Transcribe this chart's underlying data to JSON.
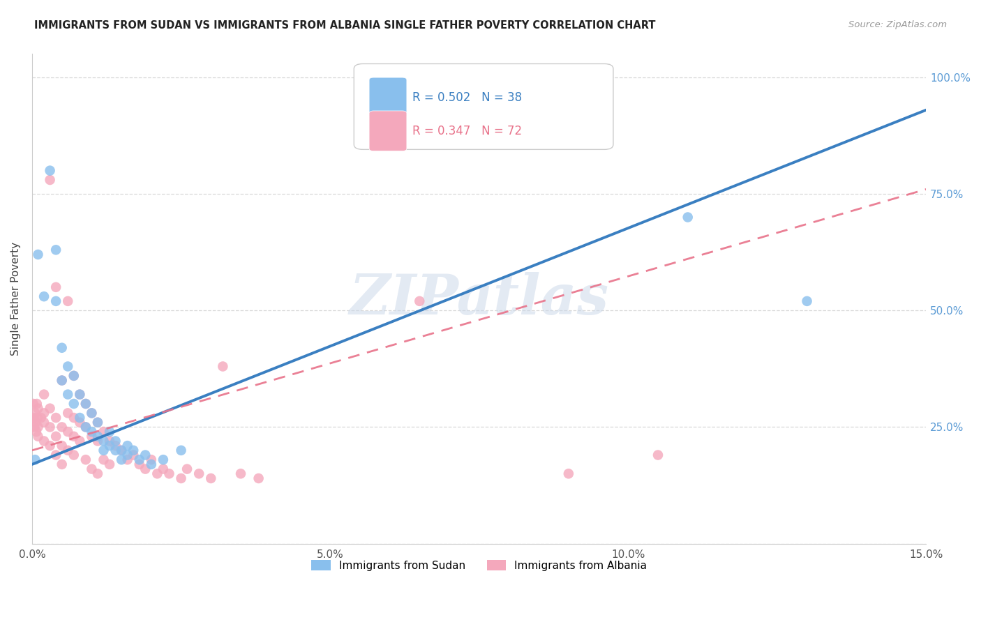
{
  "title": "IMMIGRANTS FROM SUDAN VS IMMIGRANTS FROM ALBANIA SINGLE FATHER POVERTY CORRELATION CHART",
  "source": "Source: ZipAtlas.com",
  "ylabel": "Single Father Poverty",
  "xlim": [
    0.0,
    0.15
  ],
  "ylim": [
    0.0,
    1.05
  ],
  "xtick_vals": [
    0.0,
    0.05,
    0.1,
    0.15
  ],
  "xtick_labels": [
    "0.0%",
    "5.0%",
    "10.0%",
    "15.0%"
  ],
  "ytick_vals": [
    0.0,
    0.25,
    0.5,
    0.75,
    1.0
  ],
  "ytick_labels_right": [
    "",
    "25.0%",
    "50.0%",
    "75.0%",
    "100.0%"
  ],
  "sudan_color": "#89bfed",
  "albania_color": "#f4a8bc",
  "sudan_line_color": "#3a7fc1",
  "albania_line_color": "#e8728a",
  "R_sudan": 0.502,
  "N_sudan": 38,
  "R_albania": 0.347,
  "N_albania": 72,
  "watermark": "ZIPatlas",
  "background_color": "#ffffff",
  "grid_color": "#d8d8d8",
  "title_color": "#222222",
  "right_tick_color": "#5b9bd5",
  "legend_label_sudan": "Immigrants from Sudan",
  "legend_label_albania": "Immigrants from Albania",
  "sudan_points": [
    [
      0.0005,
      0.18
    ],
    [
      0.001,
      0.62
    ],
    [
      0.002,
      0.53
    ],
    [
      0.003,
      0.8
    ],
    [
      0.004,
      0.63
    ],
    [
      0.004,
      0.52
    ],
    [
      0.005,
      0.42
    ],
    [
      0.005,
      0.35
    ],
    [
      0.006,
      0.38
    ],
    [
      0.006,
      0.32
    ],
    [
      0.007,
      0.36
    ],
    [
      0.007,
      0.3
    ],
    [
      0.008,
      0.32
    ],
    [
      0.008,
      0.27
    ],
    [
      0.009,
      0.3
    ],
    [
      0.009,
      0.25
    ],
    [
      0.01,
      0.28
    ],
    [
      0.01,
      0.24
    ],
    [
      0.011,
      0.26
    ],
    [
      0.011,
      0.23
    ],
    [
      0.012,
      0.22
    ],
    [
      0.012,
      0.2
    ],
    [
      0.013,
      0.24
    ],
    [
      0.013,
      0.21
    ],
    [
      0.014,
      0.22
    ],
    [
      0.014,
      0.2
    ],
    [
      0.015,
      0.2
    ],
    [
      0.015,
      0.18
    ],
    [
      0.016,
      0.21
    ],
    [
      0.016,
      0.19
    ],
    [
      0.017,
      0.2
    ],
    [
      0.018,
      0.18
    ],
    [
      0.019,
      0.19
    ],
    [
      0.02,
      0.17
    ],
    [
      0.022,
      0.18
    ],
    [
      0.025,
      0.2
    ],
    [
      0.11,
      0.7
    ],
    [
      0.13,
      0.52
    ]
  ],
  "albania_points": [
    [
      0.0002,
      0.3
    ],
    [
      0.0003,
      0.27
    ],
    [
      0.0004,
      0.25
    ],
    [
      0.0005,
      0.28
    ],
    [
      0.0006,
      0.26
    ],
    [
      0.0007,
      0.24
    ],
    [
      0.0008,
      0.3
    ],
    [
      0.0009,
      0.27
    ],
    [
      0.001,
      0.25
    ],
    [
      0.001,
      0.29
    ],
    [
      0.001,
      0.23
    ],
    [
      0.0015,
      0.27
    ],
    [
      0.002,
      0.32
    ],
    [
      0.002,
      0.26
    ],
    [
      0.002,
      0.22
    ],
    [
      0.002,
      0.28
    ],
    [
      0.003,
      0.29
    ],
    [
      0.003,
      0.25
    ],
    [
      0.003,
      0.21
    ],
    [
      0.003,
      0.78
    ],
    [
      0.004,
      0.27
    ],
    [
      0.004,
      0.55
    ],
    [
      0.004,
      0.23
    ],
    [
      0.004,
      0.19
    ],
    [
      0.005,
      0.35
    ],
    [
      0.005,
      0.25
    ],
    [
      0.005,
      0.21
    ],
    [
      0.005,
      0.17
    ],
    [
      0.006,
      0.52
    ],
    [
      0.006,
      0.28
    ],
    [
      0.006,
      0.24
    ],
    [
      0.006,
      0.2
    ],
    [
      0.007,
      0.36
    ],
    [
      0.007,
      0.27
    ],
    [
      0.007,
      0.23
    ],
    [
      0.007,
      0.19
    ],
    [
      0.008,
      0.32
    ],
    [
      0.008,
      0.26
    ],
    [
      0.008,
      0.22
    ],
    [
      0.009,
      0.3
    ],
    [
      0.009,
      0.25
    ],
    [
      0.009,
      0.18
    ],
    [
      0.01,
      0.28
    ],
    [
      0.01,
      0.23
    ],
    [
      0.01,
      0.16
    ],
    [
      0.011,
      0.26
    ],
    [
      0.011,
      0.22
    ],
    [
      0.011,
      0.15
    ],
    [
      0.012,
      0.24
    ],
    [
      0.012,
      0.18
    ],
    [
      0.013,
      0.22
    ],
    [
      0.013,
      0.17
    ],
    [
      0.014,
      0.21
    ],
    [
      0.015,
      0.2
    ],
    [
      0.016,
      0.18
    ],
    [
      0.017,
      0.19
    ],
    [
      0.018,
      0.17
    ],
    [
      0.019,
      0.16
    ],
    [
      0.02,
      0.18
    ],
    [
      0.021,
      0.15
    ],
    [
      0.022,
      0.16
    ],
    [
      0.023,
      0.15
    ],
    [
      0.025,
      0.14
    ],
    [
      0.026,
      0.16
    ],
    [
      0.028,
      0.15
    ],
    [
      0.03,
      0.14
    ],
    [
      0.032,
      0.38
    ],
    [
      0.035,
      0.15
    ],
    [
      0.038,
      0.14
    ],
    [
      0.065,
      0.52
    ],
    [
      0.09,
      0.15
    ],
    [
      0.105,
      0.19
    ]
  ],
  "sudan_trend": [
    0.0,
    0.15,
    0.17,
    0.93
  ],
  "albania_trend": [
    0.0,
    0.15,
    0.2,
    0.76
  ]
}
